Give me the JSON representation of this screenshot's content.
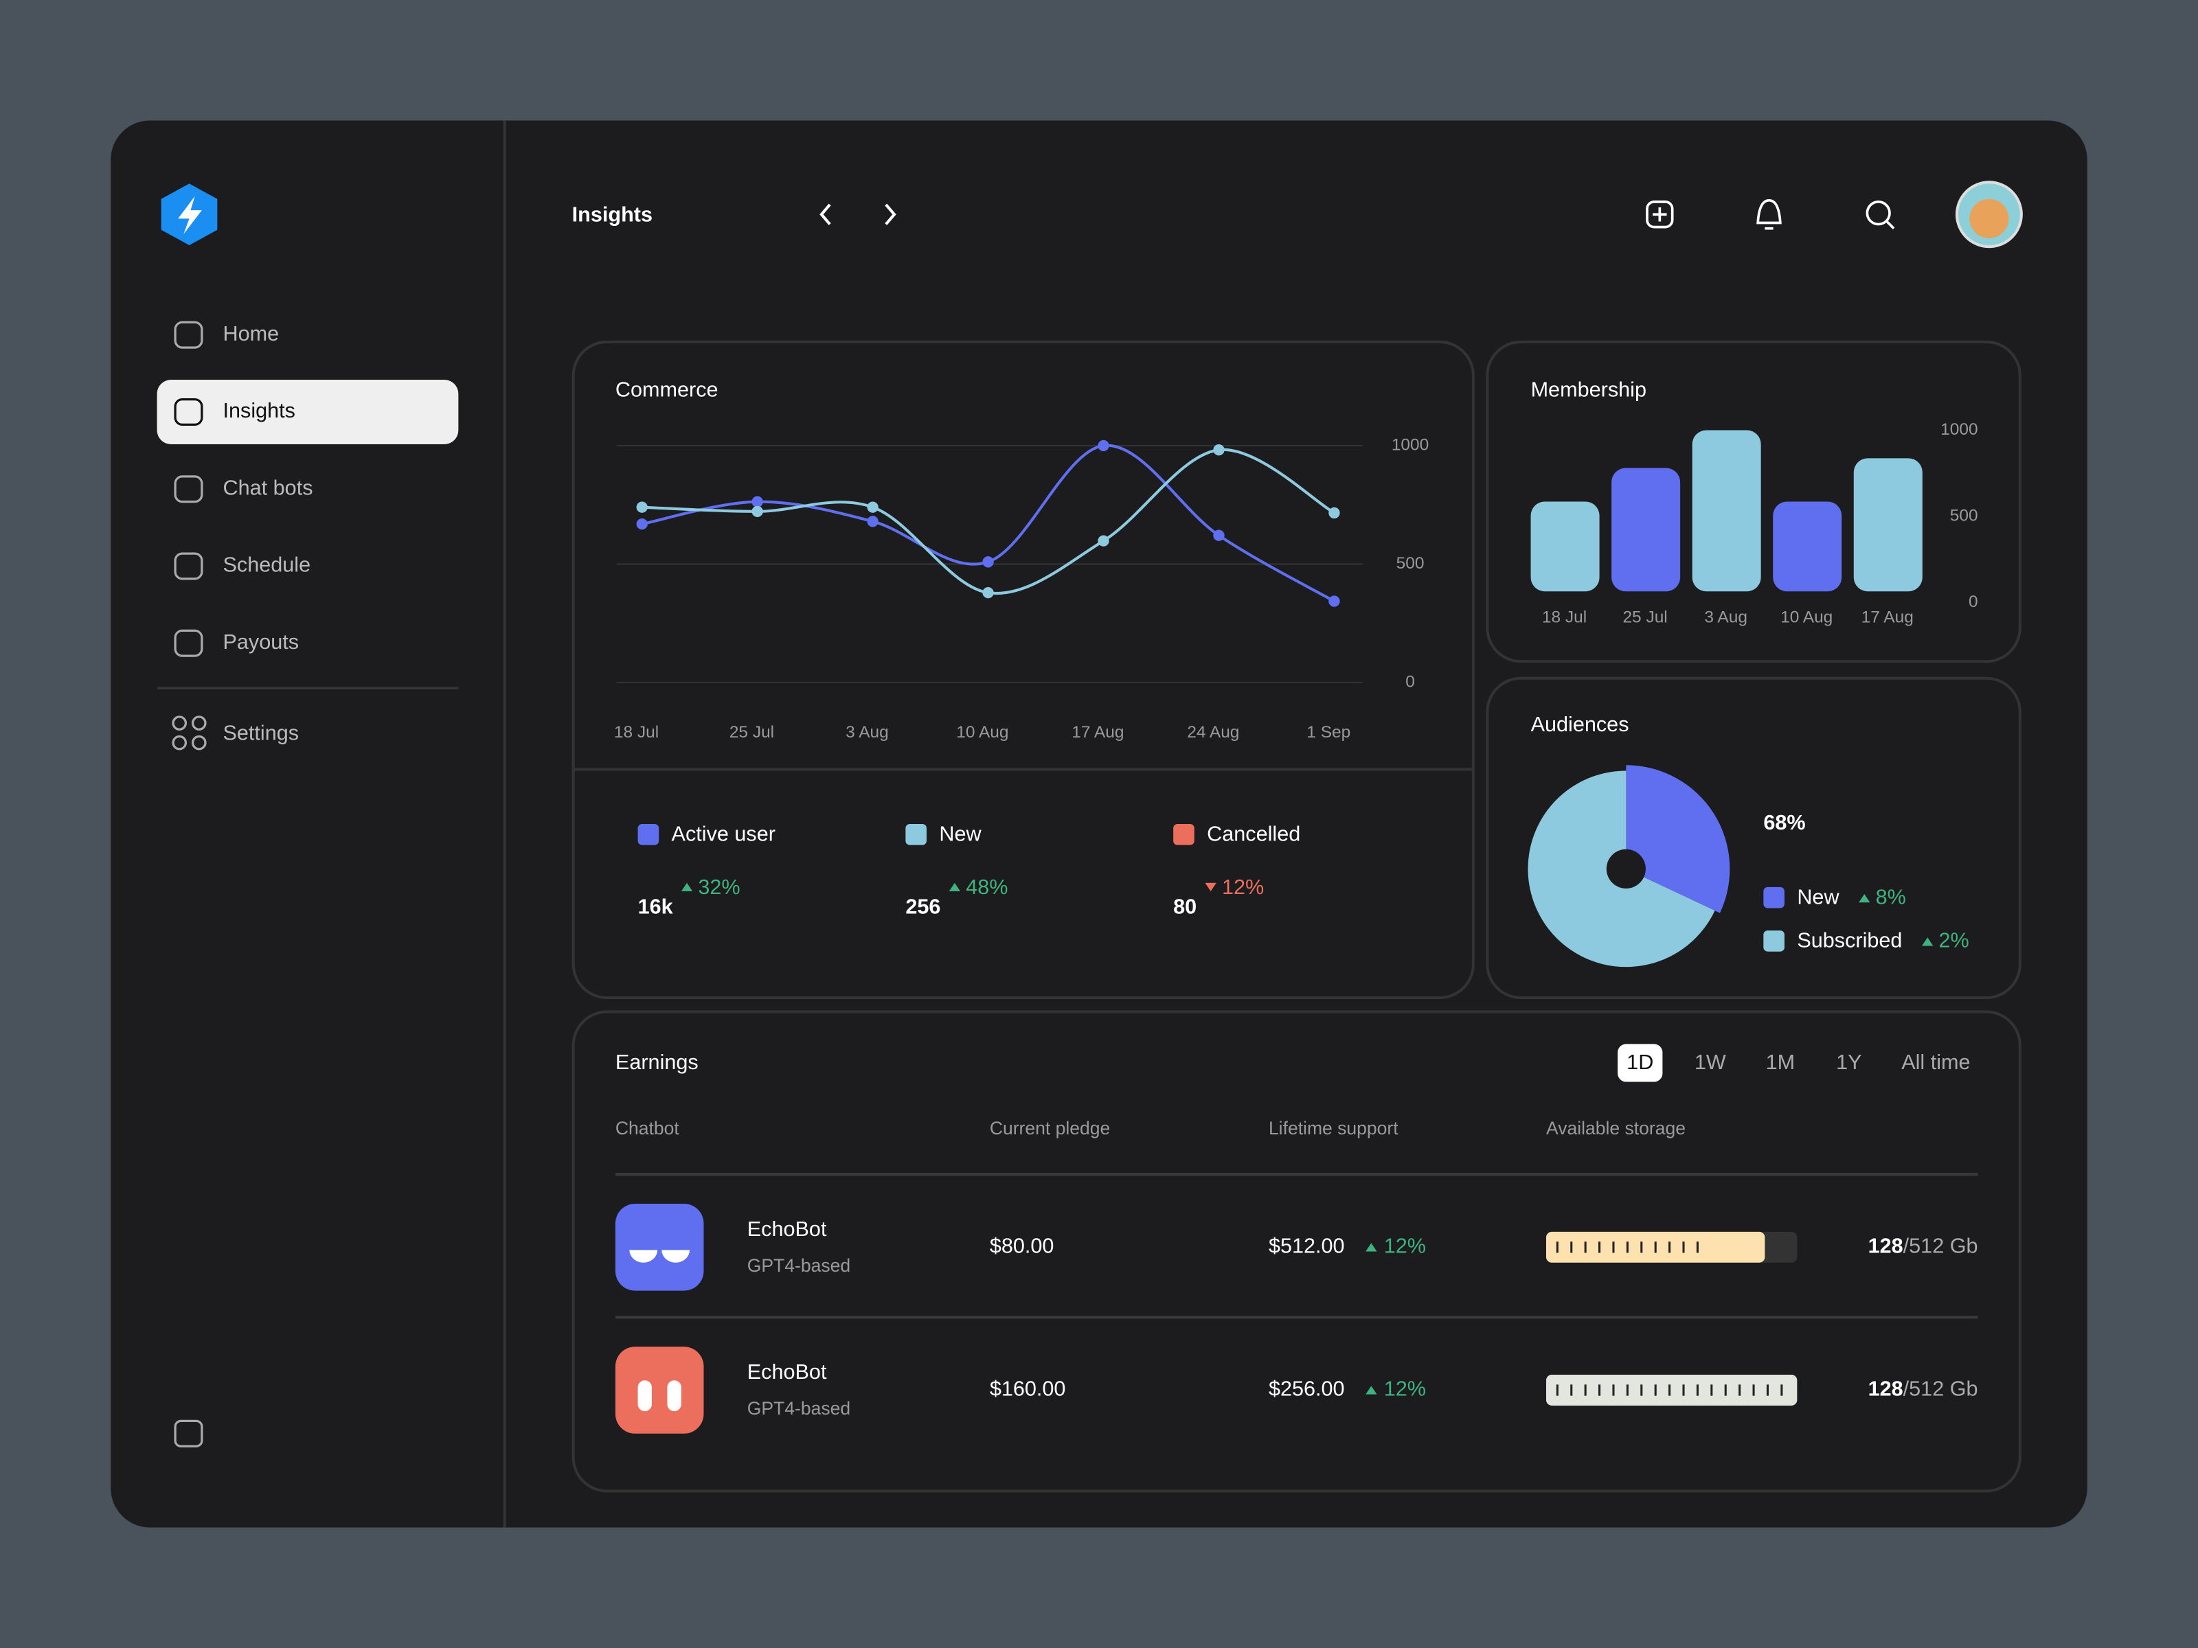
{
  "sidebar": {
    "nav": [
      "Home",
      "Insights",
      "Chat bots",
      "Schedule",
      "Payouts"
    ],
    "active": 1,
    "settings": "Settings"
  },
  "header": {
    "title": "Insights"
  },
  "chart_data": [
    {
      "type": "line",
      "title": "Commerce",
      "categories": [
        "18 Jul",
        "25 Jul",
        "3 Aug",
        "10 Aug",
        "17 Aug",
        "24 Aug",
        "1 Sep"
      ],
      "series": [
        {
          "color": "#5f6ff0",
          "values": [
            669,
            763,
            680,
            509,
            1000,
            621,
            343
          ]
        },
        {
          "color": "#8ecadf",
          "values": [
            740,
            722,
            740,
            379,
            598,
            982,
            716
          ]
        }
      ],
      "ylim": [
        0,
        1000
      ],
      "yticks": [
        0,
        500,
        1000
      ],
      "grid": true
    },
    {
      "type": "bar",
      "title": "Membership",
      "categories": [
        "18 Jul",
        "25 Jul",
        "3 Aug",
        "10 Aug",
        "17 Aug"
      ],
      "values": [
        557,
        765,
        1000,
        557,
        826
      ],
      "colors": [
        "#8ecadf",
        "#5f6ff0",
        "#8ecadf",
        "#5f6ff0",
        "#8ecadf"
      ],
      "ylim": [
        0,
        1000
      ],
      "yticks": [
        0,
        500,
        1000
      ]
    },
    {
      "type": "pie",
      "title": "Audiences",
      "categories": [
        "New",
        "Subscribed"
      ],
      "values": [
        32,
        68
      ],
      "value_labels": [
        null,
        "68%"
      ],
      "colors": [
        "#5f6ff0",
        "#8ecadf"
      ],
      "changes": [
        "8%",
        "2%"
      ]
    }
  ],
  "commerce_stats": [
    {
      "name": "Active user",
      "color": "#5f6ff0",
      "value": "16k",
      "change": "32%",
      "trend": "up"
    },
    {
      "name": "New",
      "color": "#8ecadf",
      "value": "256",
      "change": "48%",
      "trend": "up"
    },
    {
      "name": "Cancelled",
      "color": "#ec6f5e",
      "value": "80",
      "change": "12%",
      "trend": "down"
    }
  ],
  "earnings": {
    "title": "Earnings",
    "tabs": [
      "1D",
      "1W",
      "1M",
      "1Y",
      "All time"
    ],
    "active_tab": 0,
    "columns": [
      "Chatbot",
      "Current pledge",
      "Lifetime support",
      "Available storage"
    ],
    "rows": [
      {
        "name": "EchoBot",
        "model": "GPT4-based",
        "pledge": "$80.00",
        "support": "$512.00",
        "change": "12%",
        "used": "128",
        "total": "/512 Gb",
        "icon_color": "#5f6ff0"
      },
      {
        "name": "EchoBot",
        "model": "GPT4-based",
        "pledge": "$160.00",
        "support": "$256.00",
        "change": "12%",
        "used": "128",
        "total": "/512 Gb",
        "icon_color": "#ec6f5e"
      }
    ]
  }
}
